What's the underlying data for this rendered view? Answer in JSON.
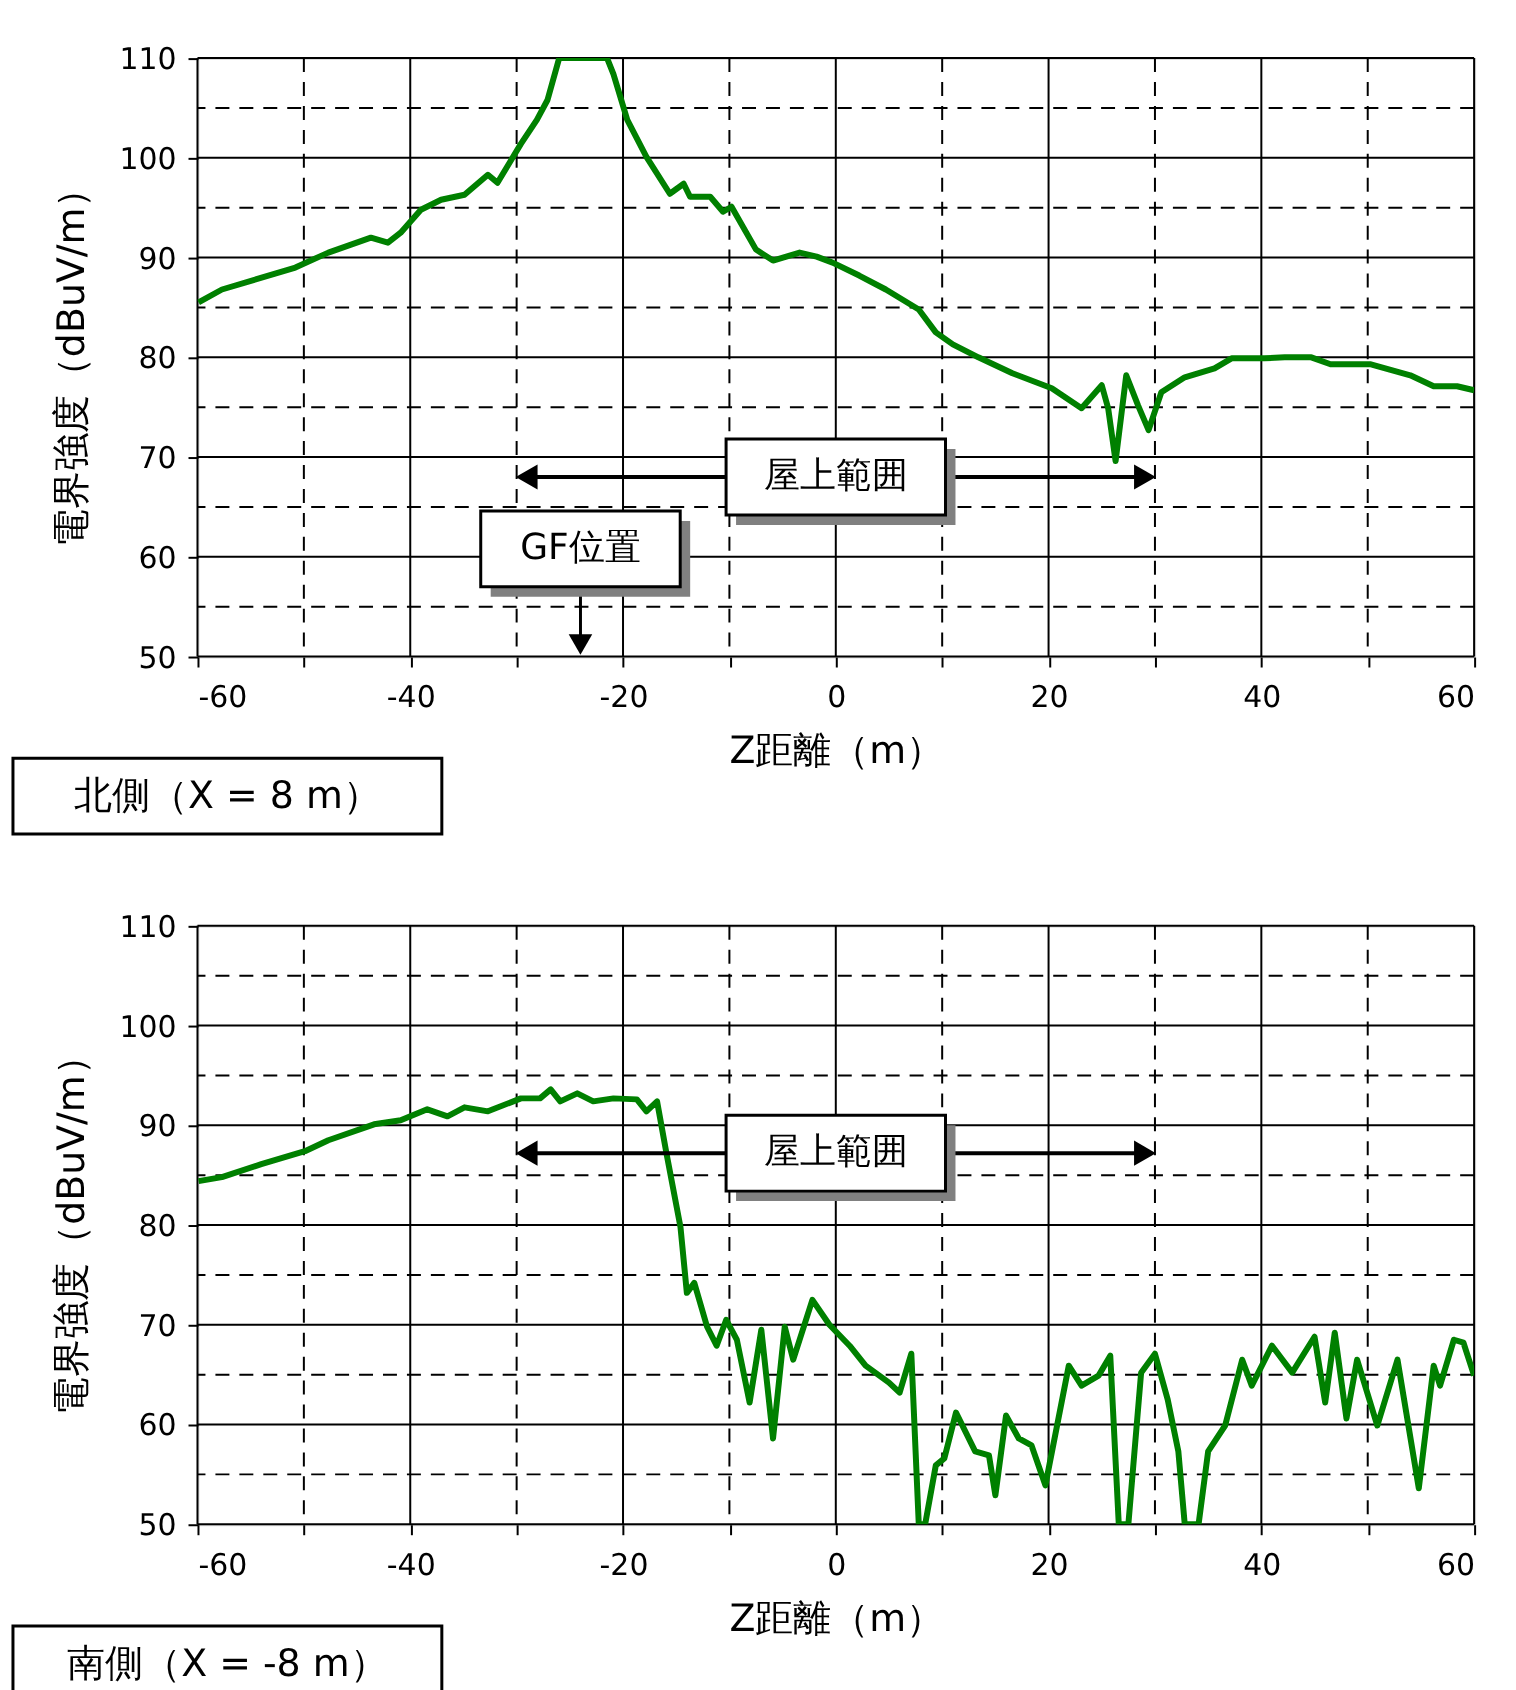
{
  "chart_data": [
    {
      "type": "line",
      "xlabel": "Z距離（m）",
      "ylabel": "電界強度（dBuV/m）",
      "xlim": [
        -60,
        60
      ],
      "xticks": [
        -60,
        {
          "value": -50,
          "label": null
        },
        -40,
        {
          "value": -30,
          "label": null
        },
        -20,
        {
          "value": -10,
          "label": null
        },
        0,
        {
          "value": 10,
          "label": null
        },
        20,
        {
          "value": 30,
          "label": null
        },
        40,
        {
          "value": 50,
          "label": null
        },
        60
      ],
      "ylim": [
        50,
        110
      ],
      "yticks": [
        50,
        {
          "value": 55,
          "label": null
        },
        60,
        {
          "value": 65,
          "label": null
        },
        70,
        {
          "value": 75,
          "label": null
        },
        80,
        {
          "value": 85,
          "label": null
        },
        90,
        {
          "value": 95,
          "label": null
        },
        100,
        {
          "value": 105,
          "label": null
        },
        110
      ],
      "grid": true,
      "marker": "none",
      "line_style": "solid",
      "series": [
        {
          "color": "#008000",
          "x": [
            -59.9,
            -57.7,
            -50.8,
            -47.7,
            -43.7,
            -42.1,
            -40.9,
            -39.0,
            -37.1,
            -34.9,
            -32.7,
            -31.8,
            -29.6,
            -28.1,
            -27.1,
            -26.0,
            -21.5,
            -20.9,
            -19.6,
            -17.8,
            -15.6,
            -14.3,
            -13.7,
            -11.8,
            -10.6,
            -9.8,
            -7.5,
            -5.9,
            -3.4,
            -1.8,
            -0.3,
            2.2,
            4.7,
            7.8,
            9.4,
            11.0,
            13.4,
            16.6,
            20.3,
            23.1,
            25.0,
            25.6,
            26.3,
            27.3,
            28.4,
            29.4,
            30.6,
            32.8,
            35.6,
            37.2,
            40.3,
            42.2,
            44.7,
            46.5,
            50.3,
            54.0,
            56.2,
            58.4,
            60
          ],
          "values": [
            85.5,
            86.8,
            89.0,
            90.5,
            92.0,
            91.5,
            92.5,
            94.8,
            95.8,
            96.3,
            98.3,
            97.5,
            101.4,
            103.8,
            105.8,
            110,
            110,
            108.4,
            103.8,
            100.1,
            96.4,
            97.4,
            96.1,
            96.1,
            94.6,
            95.1,
            90.8,
            89.7,
            90.5,
            90.1,
            89.5,
            88.2,
            86.8,
            84.8,
            82.5,
            81.3,
            80.0,
            78.4,
            76.9,
            74.9,
            77.2,
            74.9,
            69.6,
            78.2,
            75.2,
            72.7,
            76.5,
            78.0,
            78.9,
            79.9,
            79.9,
            80.0,
            80.0,
            79.3,
            79.3,
            78.2,
            77.1,
            77.1,
            76.7
          ]
        }
      ],
      "annotations": [
        "屋上範囲",
        "GF位置",
        "北側（X = 8 m）"
      ]
    },
    {
      "type": "line",
      "xlabel": "Z距離（m）",
      "ylabel": "電界強度（dBuV/m）",
      "xlim": [
        -60,
        60
      ],
      "xticks": [
        -60,
        {
          "value": -50,
          "label": null
        },
        -40,
        {
          "value": -30,
          "label": null
        },
        -20,
        {
          "value": -10,
          "label": null
        },
        0,
        {
          "value": 10,
          "label": null
        },
        20,
        {
          "value": 30,
          "label": null
        },
        40,
        {
          "value": 50,
          "label": null
        },
        60
      ],
      "ylim": [
        50,
        110
      ],
      "yticks": [
        50,
        {
          "value": 55,
          "label": null
        },
        60,
        {
          "value": 65,
          "label": null
        },
        70,
        {
          "value": 75,
          "label": null
        },
        80,
        {
          "value": 85,
          "label": null
        },
        90,
        {
          "value": 95,
          "label": null
        },
        100,
        {
          "value": 105,
          "label": null
        },
        110
      ],
      "grid": true,
      "marker": "none",
      "line_style": "solid",
      "series": [
        {
          "color": "#008000",
          "x": [
            -59.9,
            -57.7,
            -54.0,
            -49.9,
            -47.7,
            -43.4,
            -40.9,
            -38.4,
            -36.5,
            -34.9,
            -32.7,
            -29.6,
            -27.8,
            -26.8,
            -25.9,
            -24.3,
            -22.8,
            -20.9,
            -18.7,
            -17.8,
            -16.8,
            -15.9,
            -14.6,
            -14.0,
            -13.3,
            -12.1,
            -11.2,
            -10.3,
            -9.3,
            -8.1,
            -7.0,
            -5.9,
            -4.8,
            -4.0,
            -2.2,
            -0.6,
            1.3,
            2.8,
            5.0,
            6.0,
            7.1,
            7.8,
            8.4,
            9.4,
            10.2,
            11.3,
            13.1,
            14.4,
            15.0,
            16.0,
            17.2,
            18.4,
            19.7,
            21.9,
            23.1,
            24.7,
            25.8,
            26.6,
            27.5,
            28.7,
            30.0,
            31.2,
            32.2,
            32.8,
            34.1,
            35.0,
            36.6,
            38.2,
            39.1,
            41.0,
            42.9,
            45.0,
            46.0,
            46.9,
            48.0,
            49.0,
            50.9,
            52.8,
            54.8,
            56.2,
            56.8,
            58.1,
            59.0,
            60.0
          ],
          "values": [
            84.4,
            84.8,
            86.1,
            87.4,
            88.5,
            90.1,
            90.5,
            91.6,
            90.9,
            91.8,
            91.4,
            92.7,
            92.7,
            93.6,
            92.4,
            93.2,
            92.4,
            92.7,
            92.6,
            91.4,
            92.4,
            87.1,
            79.8,
            73.2,
            74.2,
            69.8,
            67.9,
            70.5,
            68.5,
            62.2,
            69.5,
            58.6,
            69.8,
            66.5,
            72.5,
            70.0,
            67.9,
            65.9,
            64.2,
            63.2,
            67.1,
            50,
            50,
            55.9,
            56.6,
            61.2,
            57.3,
            56.9,
            52.9,
            60.9,
            58.6,
            57.9,
            53.9,
            65.9,
            63.9,
            64.9,
            66.9,
            50,
            50,
            65.2,
            67.1,
            62.5,
            57.3,
            50,
            50,
            57.3,
            59.9,
            66.5,
            63.9,
            67.9,
            65.2,
            68.8,
            62.2,
            69.2,
            60.6,
            66.5,
            59.9,
            66.5,
            53.6,
            65.9,
            63.9,
            68.5,
            68.2,
            64.9
          ]
        }
      ],
      "annotations": [
        "屋上範囲",
        "南側（X = -8 m）"
      ]
    }
  ]
}
